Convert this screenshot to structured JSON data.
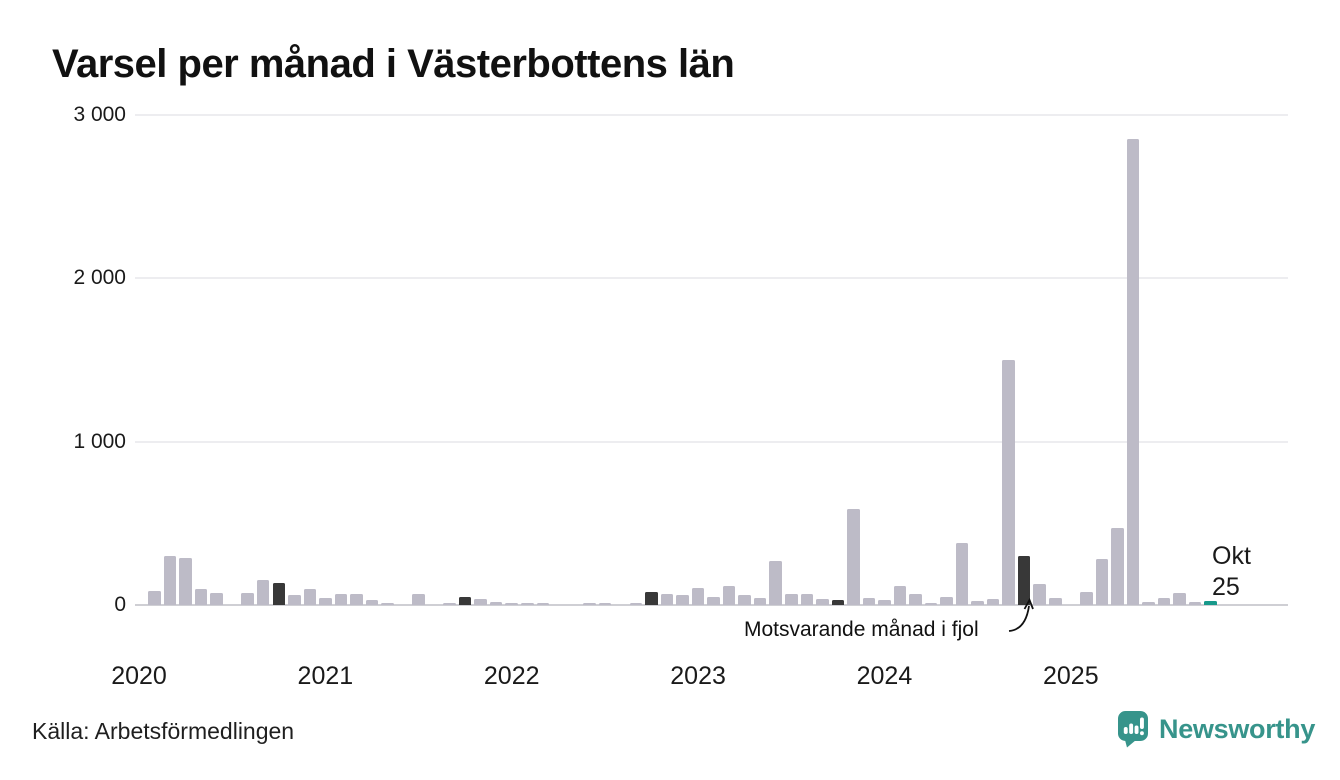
{
  "chart_data": {
    "type": "bar",
    "title": "Varsel per månad i Västerbottens län",
    "xlabel": "",
    "ylabel": "",
    "ylim": [
      0,
      3000
    ],
    "grid": true,
    "y_ticks": [
      {
        "value": 3000,
        "label": "3 000"
      },
      {
        "value": 2000,
        "label": "2 000"
      },
      {
        "value": 1000,
        "label": "1 000"
      },
      {
        "value": 0,
        "label": "0"
      }
    ],
    "x_year_ticks": [
      "2020",
      "2021",
      "2022",
      "2023",
      "2024",
      "2025"
    ],
    "colors": {
      "default": "#bdbbc7",
      "lastyear": "#383838",
      "latest": "#18998b"
    },
    "annotations": {
      "lastyear": "Motsvarande månad i fjol"
    },
    "latest_label": {
      "line1": "Okt",
      "line2": "25"
    },
    "months": [
      {
        "label": "jan 2020",
        "value": 0
      },
      {
        "label": "feb 2020",
        "value": 85
      },
      {
        "label": "mar 2020",
        "value": 300
      },
      {
        "label": "apr 2020",
        "value": 285
      },
      {
        "label": "maj 2020",
        "value": 100
      },
      {
        "label": "jun 2020",
        "value": 75
      },
      {
        "label": "jul 2020",
        "value": 0
      },
      {
        "label": "aug 2020",
        "value": 75
      },
      {
        "label": "sep 2020",
        "value": 150
      },
      {
        "label": "okt 2020",
        "value": 135,
        "kind": "lastyear"
      },
      {
        "label": "nov 2020",
        "value": 60
      },
      {
        "label": "dec 2020",
        "value": 95
      },
      {
        "label": "jan 2021",
        "value": 45
      },
      {
        "label": "feb 2021",
        "value": 65
      },
      {
        "label": "mar 2021",
        "value": 70
      },
      {
        "label": "apr 2021",
        "value": 30
      },
      {
        "label": "maj 2021",
        "value": 10
      },
      {
        "label": "jun 2021",
        "value": 0
      },
      {
        "label": "jul 2021",
        "value": 70
      },
      {
        "label": "aug 2021",
        "value": 0
      },
      {
        "label": "sep 2021",
        "value": 8
      },
      {
        "label": "okt 2021",
        "value": 50,
        "kind": "lastyear"
      },
      {
        "label": "nov 2021",
        "value": 35
      },
      {
        "label": "dec 2021",
        "value": 18
      },
      {
        "label": "jan 2022",
        "value": 12
      },
      {
        "label": "feb 2022",
        "value": 5
      },
      {
        "label": "mar 2022",
        "value": 6
      },
      {
        "label": "apr 2022",
        "value": 0
      },
      {
        "label": "maj 2022",
        "value": 0
      },
      {
        "label": "jun 2022",
        "value": 6
      },
      {
        "label": "jul 2022",
        "value": 6
      },
      {
        "label": "aug 2022",
        "value": 0
      },
      {
        "label": "sep 2022",
        "value": 8
      },
      {
        "label": "okt 2022",
        "value": 80,
        "kind": "lastyear"
      },
      {
        "label": "nov 2022",
        "value": 70
      },
      {
        "label": "dec 2022",
        "value": 60
      },
      {
        "label": "jan 2023",
        "value": 105
      },
      {
        "label": "feb 2023",
        "value": 50
      },
      {
        "label": "mar 2023",
        "value": 115
      },
      {
        "label": "apr 2023",
        "value": 60
      },
      {
        "label": "maj 2023",
        "value": 45
      },
      {
        "label": "jun 2023",
        "value": 270
      },
      {
        "label": "jul 2023",
        "value": 70
      },
      {
        "label": "aug 2023",
        "value": 65
      },
      {
        "label": "sep 2023",
        "value": 35
      },
      {
        "label": "okt 2023",
        "value": 30,
        "kind": "lastyear"
      },
      {
        "label": "nov 2023",
        "value": 590
      },
      {
        "label": "dec 2023",
        "value": 45
      },
      {
        "label": "jan 2024",
        "value": 30
      },
      {
        "label": "feb 2024",
        "value": 115
      },
      {
        "label": "mar 2024",
        "value": 70
      },
      {
        "label": "apr 2024",
        "value": 15
      },
      {
        "label": "maj 2024",
        "value": 50
      },
      {
        "label": "jun 2024",
        "value": 380
      },
      {
        "label": "jul 2024",
        "value": 25
      },
      {
        "label": "aug 2024",
        "value": 35
      },
      {
        "label": "sep 2024",
        "value": 1500
      },
      {
        "label": "okt 2024",
        "value": 300,
        "kind": "lastyear"
      },
      {
        "label": "nov 2024",
        "value": 130
      },
      {
        "label": "dec 2024",
        "value": 40
      },
      {
        "label": "jan 2025",
        "value": 0
      },
      {
        "label": "feb 2025",
        "value": 80
      },
      {
        "label": "mar 2025",
        "value": 280
      },
      {
        "label": "apr 2025",
        "value": 470
      },
      {
        "label": "maj 2025",
        "value": 2850
      },
      {
        "label": "jun 2025",
        "value": 20
      },
      {
        "label": "jul 2025",
        "value": 45
      },
      {
        "label": "aug 2025",
        "value": 75
      },
      {
        "label": "sep 2025",
        "value": 20
      },
      {
        "label": "okt 2025",
        "value": 25,
        "kind": "latest"
      }
    ]
  },
  "footer": {
    "source": "Källa: Arbetsförmedlingen",
    "logo_text": "Newsworthy",
    "logo_color": "#37948b"
  }
}
